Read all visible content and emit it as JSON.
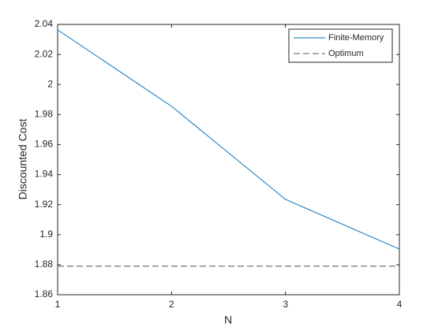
{
  "chart_data": {
    "type": "line",
    "xlabel": "N",
    "ylabel": "Discounted Cost",
    "x": [
      1,
      2,
      3,
      4
    ],
    "series": [
      {
        "name": "Finite-Memory",
        "color": "#0072bd",
        "linestyle": "solid",
        "values": [
          2.0364,
          1.9855,
          1.9235,
          1.8904
        ]
      },
      {
        "name": "Optimum",
        "color": "#555555",
        "linestyle": "dashed",
        "values": [
          1.879,
          1.879,
          1.879,
          1.879
        ]
      }
    ],
    "xlim": [
      1,
      4
    ],
    "xticks": [
      1,
      2,
      3,
      4
    ],
    "ylim": [
      1.86,
      2.04
    ],
    "yticks": [
      1.86,
      1.88,
      1.9,
      1.92,
      1.94,
      1.96,
      1.98,
      2,
      2.02,
      2.04
    ],
    "legend": "northeast",
    "grid": false
  }
}
